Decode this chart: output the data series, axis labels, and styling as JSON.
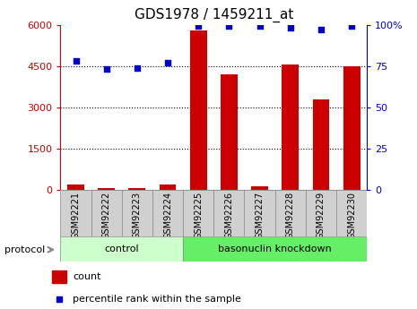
{
  "title": "GDS1978 / 1459211_at",
  "samples": [
    "GSM92221",
    "GSM92222",
    "GSM92223",
    "GSM92224",
    "GSM92225",
    "GSM92226",
    "GSM92227",
    "GSM92228",
    "GSM92229",
    "GSM92230"
  ],
  "count_values": [
    200,
    60,
    80,
    200,
    5800,
    4200,
    120,
    4550,
    3300,
    4500
  ],
  "percentile_values": [
    78,
    73,
    74,
    77,
    99,
    99,
    99,
    98,
    97,
    99
  ],
  "bar_color": "#cc0000",
  "dot_color": "#0000cc",
  "ylim_left": [
    0,
    6000
  ],
  "ylim_right": [
    0,
    100
  ],
  "yticks_left": [
    0,
    1500,
    3000,
    4500,
    6000
  ],
  "yticks_right": [
    0,
    25,
    50,
    75,
    100
  ],
  "yticklabels_right": [
    "0",
    "25",
    "50",
    "75",
    "100%"
  ],
  "protocol_label": "protocol",
  "control_label": "control",
  "knockdown_label": "basonuclin knockdown",
  "legend_count": "count",
  "legend_percentile": "percentile rank within the sample",
  "bg_color": "#ffffff",
  "bar_color_legend": "#cc0000",
  "dot_color_legend": "#0000cc",
  "title_fontsize": 11,
  "tick_fontsize": 8,
  "label_fontsize": 7,
  "proto_fontsize": 8,
  "legend_fontsize": 8,
  "control_color": "#ccffcc",
  "knockdown_color": "#66ee66",
  "xlabel_bg": "#d0d0d0",
  "xlabel_border": "#888888"
}
